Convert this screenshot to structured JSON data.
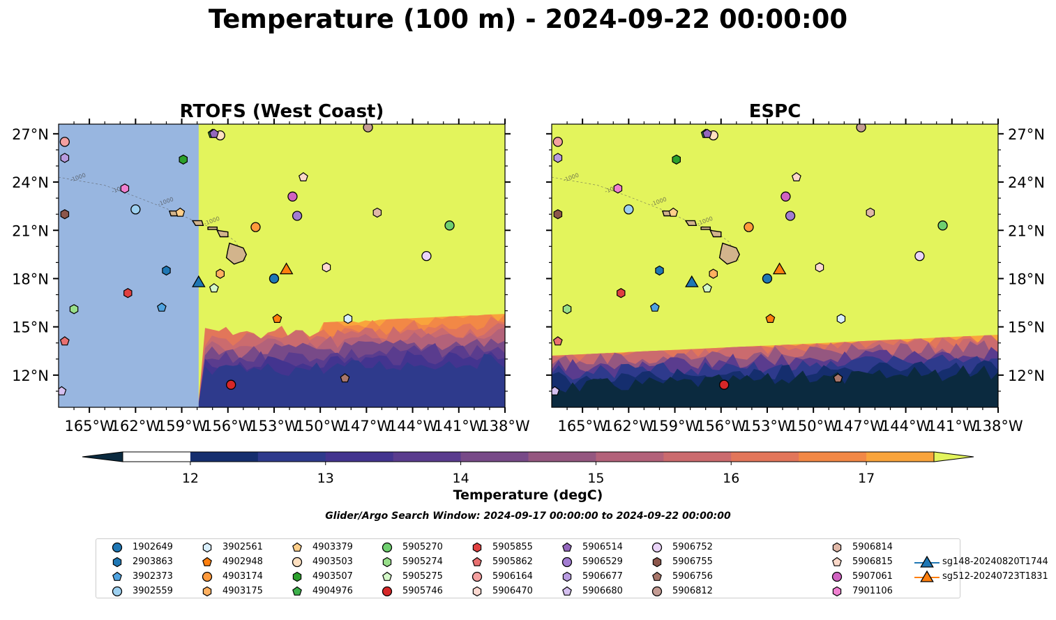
{
  "title": "Temperature (100 m) - 2024-09-22 00:00:00",
  "colorbar": {
    "label": "Temperature (degC)",
    "ticks": [
      "12",
      "13",
      "14",
      "15",
      "16",
      "17"
    ],
    "range": [
      11.5,
      17.5
    ],
    "levels": [
      12,
      12.5,
      13,
      13.5,
      14,
      14.5,
      15,
      15.5,
      16,
      16.5,
      17,
      17.5
    ],
    "colors": [
      "#0b2a3f",
      "#152e6e",
      "#2e3a8c",
      "#43348f",
      "#5a3c8e",
      "#784a88",
      "#955780",
      "#b3627a",
      "#cb6b6e",
      "#e2765a",
      "#f28846",
      "#f9a43c",
      "#f6c943",
      "#e3f45c"
    ]
  },
  "search_window": "Glider/Argo Search Window: 2024-09-17 00:00:00 to 2024-09-22 00:00:00",
  "chart_data": [
    {
      "type": "heatmap",
      "title": "RTOFS (West Coast)",
      "xlabel": "",
      "ylabel": "",
      "xlim": [
        -167,
        -138
      ],
      "ylim": [
        10,
        27.6
      ],
      "x_ticks": [
        "165°W",
        "162°W",
        "159°W",
        "156°W",
        "153°W",
        "150°W",
        "147°W",
        "144°W",
        "141°W",
        "138°W"
      ],
      "y_ticks": [
        "27°N",
        "24°N",
        "21°N",
        "18°N",
        "15°N",
        "12°N"
      ],
      "y_tick_side": "left",
      "no_data_west_of_lon": -157.9,
      "background_value": 17.5,
      "contour_label": "-1000"
    },
    {
      "type": "heatmap",
      "title": "ESPC",
      "xlabel": "",
      "ylabel": "",
      "xlim": [
        -167,
        -138
      ],
      "ylim": [
        10,
        27.6
      ],
      "x_ticks": [
        "165°W",
        "162°W",
        "159°W",
        "156°W",
        "153°W",
        "150°W",
        "147°W",
        "144°W",
        "141°W",
        "138°W"
      ],
      "y_ticks": [
        "27°N",
        "24°N",
        "21°N",
        "18°N",
        "15°N",
        "12°N"
      ],
      "y_tick_side": "right",
      "background_value": 17.5,
      "contour_label": "-1000"
    }
  ],
  "platforms": [
    {
      "id": "1902649",
      "marker": "circle",
      "color": "#1f77b4",
      "lon": -153.0,
      "lat": 18.0
    },
    {
      "id": "2903863",
      "marker": "hexagon",
      "color": "#1f77b4",
      "lon": -160.0,
      "lat": 18.5
    },
    {
      "id": "3902373",
      "marker": "pentagon",
      "color": "#4fa3e0",
      "lon": -160.3,
      "lat": 16.2
    },
    {
      "id": "3902559",
      "marker": "circle",
      "color": "#9dd0f0",
      "lon": -162.0,
      "lat": 22.3
    },
    {
      "id": "3902561",
      "marker": "hexagon",
      "color": "#d8eefc",
      "lon": -148.2,
      "lat": 15.5
    },
    {
      "id": "4902948",
      "marker": "pentagon",
      "color": "#ff7f0e",
      "lon": -152.8,
      "lat": 15.5
    },
    {
      "id": "4903174",
      "marker": "circle",
      "color": "#ff9a3c",
      "lon": -154.2,
      "lat": 21.2
    },
    {
      "id": "4903175",
      "marker": "hexagon",
      "color": "#ffb060",
      "lon": -156.5,
      "lat": 18.3
    },
    {
      "id": "4903379",
      "marker": "pentagon",
      "color": "#ffcf8a",
      "lon": -159.1,
      "lat": 22.1
    },
    {
      "id": "4903503",
      "marker": "circle",
      "color": "#ffe0c0",
      "lon": -156.5,
      "lat": 26.9
    },
    {
      "id": "4903507",
      "marker": "hexagon",
      "color": "#2ca02c",
      "lon": -158.9,
      "lat": 25.4
    },
    {
      "id": "4904976",
      "marker": "pentagon",
      "color": "#3cb04a",
      "lon": -157.0,
      "lat": 27.0
    },
    {
      "id": "5905270",
      "marker": "circle",
      "color": "#6fcf6f",
      "lon": -141.6,
      "lat": 21.3
    },
    {
      "id": "5905274",
      "marker": "hexagon",
      "color": "#98df8a",
      "lon": -166.0,
      "lat": 16.1
    },
    {
      "id": "5905275",
      "marker": "pentagon",
      "color": "#d4f8c8",
      "lon": -156.9,
      "lat": 17.4
    },
    {
      "id": "5905746",
      "marker": "circle",
      "color": "#d62728",
      "lon": -155.8,
      "lat": 11.4
    },
    {
      "id": "5905855",
      "marker": "hexagon",
      "color": "#e04040",
      "lon": -162.5,
      "lat": 17.1
    },
    {
      "id": "5905862",
      "marker": "pentagon",
      "color": "#e87070",
      "lon": -166.6,
      "lat": 14.1
    },
    {
      "id": "5906164",
      "marker": "circle",
      "color": "#f4a0a0",
      "lon": -166.6,
      "lat": 26.5
    },
    {
      "id": "5906470",
      "marker": "hexagon",
      "color": "#fcd8d0",
      "lon": -149.6,
      "lat": 18.7
    },
    {
      "id": "5906514",
      "marker": "pentagon",
      "color": "#9467bd",
      "lon": -156.9,
      "lat": 27.0
    },
    {
      "id": "5906529",
      "marker": "circle",
      "color": "#a27cd1",
      "lon": -151.5,
      "lat": 21.9
    },
    {
      "id": "5906677",
      "marker": "hexagon",
      "color": "#b89be0",
      "lon": -166.6,
      "lat": 25.5
    },
    {
      "id": "5906680",
      "marker": "pentagon",
      "color": "#d5c0f0",
      "lon": -166.8,
      "lat": 11.0
    },
    {
      "id": "5906752",
      "marker": "circle",
      "color": "#ead4f8",
      "lon": -143.1,
      "lat": 19.4
    },
    {
      "id": "5906755",
      "marker": "hexagon",
      "color": "#8c564b",
      "lon": -166.6,
      "lat": 22.0
    },
    {
      "id": "5906756",
      "marker": "pentagon",
      "color": "#a8766a",
      "lon": -148.4,
      "lat": 11.8
    },
    {
      "id": "5906812",
      "marker": "circle",
      "color": "#c49c94",
      "lon": -146.9,
      "lat": 27.4
    },
    {
      "id": "5906814",
      "marker": "hexagon",
      "color": "#e0b8a8",
      "lon": -146.3,
      "lat": 22.1
    },
    {
      "id": "5906815",
      "marker": "pentagon",
      "color": "#fbd8c8",
      "lon": -151.1,
      "lat": 24.3
    },
    {
      "id": "5907061",
      "marker": "circle",
      "color": "#d062c0",
      "lon": -151.8,
      "lat": 23.1
    },
    {
      "id": "7901106",
      "marker": "hexagon",
      "color": "#f080d0",
      "lon": -162.7,
      "lat": 23.6
    },
    {
      "id": "sg148-20240820T1744",
      "marker": "triangle",
      "color": "#1f77b4",
      "lon": -157.9,
      "lat": 17.8
    },
    {
      "id": "sg512-20240723T1831",
      "marker": "triangle",
      "color": "#ff7f0e",
      "lon": -152.2,
      "lat": 18.6
    }
  ],
  "legend_extra_markers": [
    {
      "id": "5906677",
      "lon": -166.6,
      "lat": 25.5
    },
    {
      "id": "7901106",
      "lon": -162.7,
      "lat": 23.6
    }
  ]
}
